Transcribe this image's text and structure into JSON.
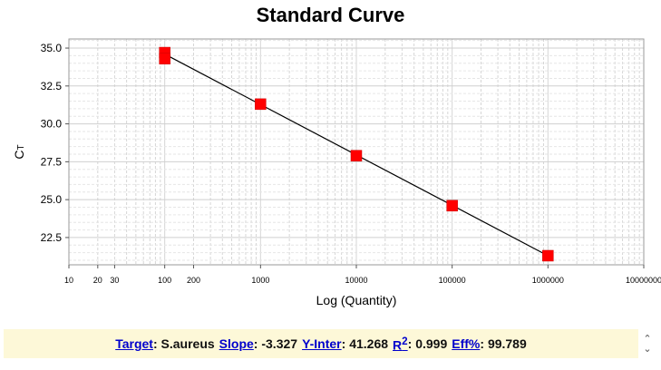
{
  "chart_data": {
    "type": "scatter",
    "title": "Standard Curve",
    "xlabel": "Log (Quantity)",
    "ylabel": "CT",
    "xscale": "log",
    "xlim": [
      10,
      10000000
    ],
    "ylim": [
      20.7,
      35.6
    ],
    "x_tick_labels": [
      {
        "v": 10,
        "label": "10"
      },
      {
        "v": 20,
        "label": "20"
      },
      {
        "v": 30,
        "label": "30"
      },
      {
        "v": 100,
        "label": "100"
      },
      {
        "v": 200,
        "label": "200"
      },
      {
        "v": 1000,
        "label": "1000"
      },
      {
        "v": 10000,
        "label": "10000"
      },
      {
        "v": 100000,
        "label": "100000"
      },
      {
        "v": 1000000,
        "label": "1000000"
      },
      {
        "v": 10000000,
        "label": "10000000"
      }
    ],
    "y_ticks": [
      {
        "v": 22.5,
        "label": "22.5"
      },
      {
        "v": 25.0,
        "label": "25.0"
      },
      {
        "v": 27.5,
        "label": "27.5"
      },
      {
        "v": 30.0,
        "label": "30.0"
      },
      {
        "v": 32.5,
        "label": "32.5"
      },
      {
        "v": 35.0,
        "label": "35.0"
      }
    ],
    "grid": true,
    "points": [
      {
        "x": 100,
        "y": 34.7
      },
      {
        "x": 100,
        "y": 34.3
      },
      {
        "x": 1000,
        "y": 31.3
      },
      {
        "x": 10000,
        "y": 27.9
      },
      {
        "x": 100000,
        "y": 24.6
      },
      {
        "x": 1000000,
        "y": 21.3
      }
    ],
    "fit_line": {
      "x": [
        100,
        1000000
      ],
      "y": [
        34.6,
        21.3
      ]
    },
    "marker_color": "#ff0000",
    "line_color": "#000000"
  },
  "status": {
    "target_label": "Target",
    "target_value": "S.aureus",
    "slope_label": "Slope",
    "slope_value": "-3.327",
    "yinter_label": "Y-Inter",
    "yinter_value": "41.268",
    "r2_label": "R",
    "r2_sup": "2",
    "r2_value": "0.999",
    "eff_label": "Eff%",
    "eff_value": "99.789"
  },
  "icons": {
    "stepper": "up-down-chevron-icon"
  }
}
